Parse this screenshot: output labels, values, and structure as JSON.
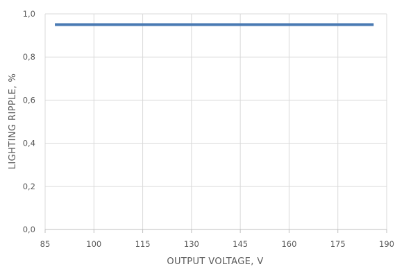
{
  "chart_data": {
    "type": "line",
    "title": "",
    "xlabel": "OUTPUT VOLTAGE, V",
    "ylabel": "LIGHTING RIPPLE, %",
    "xlim": [
      85,
      190
    ],
    "ylim": [
      0,
      1
    ],
    "x_ticks": [
      85,
      100,
      115,
      130,
      145,
      160,
      175,
      190
    ],
    "x_tick_labels": [
      "85",
      "100",
      "115",
      "130",
      "145",
      "160",
      "175",
      "190"
    ],
    "y_ticks": [
      0,
      0.2,
      0.4,
      0.6,
      0.8,
      1.0
    ],
    "y_tick_labels": [
      "0,0",
      "0,2",
      "0,4",
      "0,6",
      "0,8",
      "1,0"
    ],
    "grid": true,
    "legend": "none",
    "series": [
      {
        "color": "#4a7ab3",
        "x": [
          88,
          186
        ],
        "y": [
          0.95,
          0.95
        ]
      }
    ]
  }
}
